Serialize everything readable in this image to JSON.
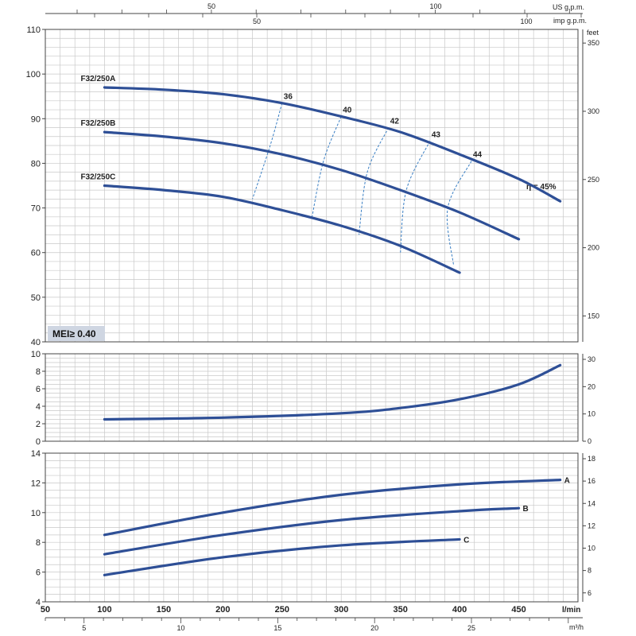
{
  "colors": {
    "curve": "#2e4f96",
    "efficiency": "#3a7fc4",
    "grid": "#c8c8c8",
    "frame": "#444444",
    "badge": "#cfd6e2"
  },
  "chart_data": [
    {
      "type": "line",
      "name": "head",
      "xlim": [
        50,
        500
      ],
      "ylim": [
        40,
        110
      ],
      "yticks": [
        40,
        50,
        60,
        70,
        80,
        90,
        100,
        110
      ],
      "right_axis": {
        "unit": "feet",
        "ticks": [
          150,
          200,
          250,
          300,
          350
        ]
      },
      "series": [
        {
          "name": "F32/250A",
          "points": [
            [
              100,
              97
            ],
            [
              150,
              96.5
            ],
            [
              200,
              95.5
            ],
            [
              250,
              93.5
            ],
            [
              300,
              90.5
            ],
            [
              350,
              87
            ],
            [
              400,
              82
            ],
            [
              450,
              76.5
            ],
            [
              485,
              71.5
            ]
          ]
        },
        {
          "name": "F32/250B",
          "points": [
            [
              100,
              87
            ],
            [
              150,
              86
            ],
            [
              200,
              84.5
            ],
            [
              250,
              82
            ],
            [
              300,
              78.5
            ],
            [
              350,
              74
            ],
            [
              400,
              69
            ],
            [
              450,
              63
            ]
          ]
        },
        {
          "name": "F32/250C",
          "points": [
            [
              100,
              75
            ],
            [
              150,
              74
            ],
            [
              200,
              72.5
            ],
            [
              250,
              69.5
            ],
            [
              300,
              66
            ],
            [
              350,
              61.5
            ],
            [
              400,
              55.5
            ]
          ]
        }
      ],
      "efficiency_lines": [
        {
          "label": "36",
          "points": [
            [
              250,
              93.5
            ],
            [
              240,
              84
            ],
            [
              225,
              72
            ]
          ]
        },
        {
          "label": "40",
          "points": [
            [
              300,
              90.5
            ],
            [
              285,
              80.5
            ],
            [
              275,
              67.5
            ]
          ]
        },
        {
          "label": "42",
          "points": [
            [
              340,
              88
            ],
            [
              322,
              78
            ],
            [
              315,
              64
            ]
          ]
        },
        {
          "label": "43",
          "points": [
            [
              375,
              85
            ],
            [
              355,
              74
            ],
            [
              350,
              60
            ]
          ]
        },
        {
          "label": "44",
          "points": [
            [
              410,
              80.5
            ],
            [
              390,
              70
            ],
            [
              395,
              57
            ]
          ]
        }
      ],
      "efficiency_end_label": "η = 45%",
      "badge": "MEI≥ 0.40"
    },
    {
      "type": "line",
      "name": "npsh",
      "xlim": [
        50,
        500
      ],
      "ylim": [
        0,
        10
      ],
      "yticks": [
        0,
        2,
        4,
        6,
        8,
        10
      ],
      "right_axis": {
        "ticks": [
          0,
          10,
          20,
          30
        ]
      },
      "series": [
        {
          "points": [
            [
              100,
              2.5
            ],
            [
              200,
              2.7
            ],
            [
              300,
              3.2
            ],
            [
              350,
              3.8
            ],
            [
              400,
              4.8
            ],
            [
              450,
              6.5
            ],
            [
              485,
              8.7
            ]
          ]
        }
      ]
    },
    {
      "type": "line",
      "name": "power",
      "xlim": [
        50,
        500
      ],
      "ylim": [
        4,
        14
      ],
      "yticks": [
        4,
        6,
        8,
        10,
        12,
        14
      ],
      "right_axis": {
        "ticks": [
          6,
          8,
          10,
          12,
          14,
          16,
          18
        ]
      },
      "series": [
        {
          "name": "A",
          "points": [
            [
              100,
              8.5
            ],
            [
              200,
              10
            ],
            [
              300,
              11.2
            ],
            [
              400,
              11.9
            ],
            [
              485,
              12.2
            ]
          ]
        },
        {
          "name": "B",
          "points": [
            [
              100,
              7.2
            ],
            [
              200,
              8.5
            ],
            [
              300,
              9.5
            ],
            [
              400,
              10.1
            ],
            [
              450,
              10.3
            ]
          ]
        },
        {
          "name": "C",
          "points": [
            [
              100,
              5.8
            ],
            [
              200,
              7
            ],
            [
              300,
              7.8
            ],
            [
              400,
              8.2
            ]
          ]
        }
      ]
    }
  ],
  "axes": {
    "bottom_lmin": {
      "unit": "l/min",
      "ticks": [
        50,
        100,
        150,
        200,
        250,
        300,
        350,
        400,
        450
      ]
    },
    "bottom_m3h": {
      "unit": "m³/h",
      "ticks": [
        5,
        10,
        15,
        20,
        25
      ]
    },
    "top_us": {
      "unit": "US g.p.m.",
      "ticks": [
        50,
        100
      ]
    },
    "top_imp": {
      "unit": "imp g.p.m.",
      "ticks": [
        50,
        100
      ]
    }
  }
}
